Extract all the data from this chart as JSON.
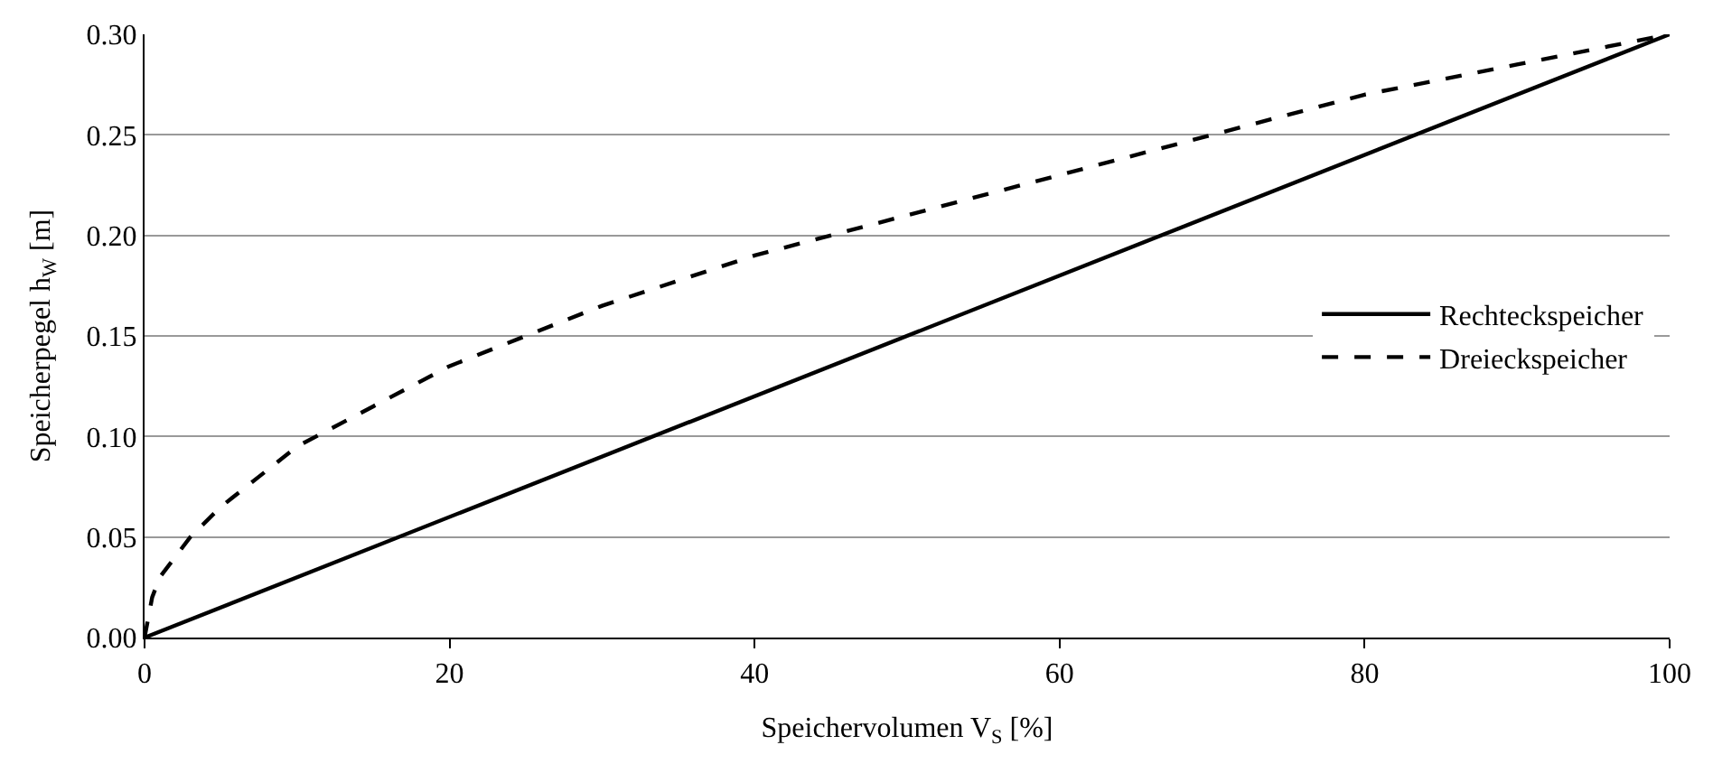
{
  "chart_data": {
    "type": "line",
    "xlabel": "Speichervolumen V$_{S}$ [%]",
    "ylabel": "Speicherpegel h$_{W}$ [m]",
    "xlim": [
      0,
      100
    ],
    "xticks": [
      0,
      20,
      40,
      60,
      80,
      100
    ],
    "ylim": [
      0,
      0.3
    ],
    "yticks": [
      {
        "value": 0,
        "label": "0.00"
      },
      {
        "value": 0.05,
        "label": "0.05"
      },
      {
        "value": 0.1,
        "label": "0.10"
      },
      {
        "value": 0.15,
        "label": "0.15"
      },
      {
        "value": 0.2,
        "label": "0.20"
      },
      {
        "value": 0.25,
        "label": "0.25"
      },
      {
        "value": 0.3,
        "label": "0.30"
      }
    ],
    "grid": "y",
    "legend": "right",
    "marker": "none",
    "series": [
      {
        "name": "Rechteckspeicher",
        "color": "#000000",
        "line_style": "solid",
        "x": [
          0,
          100
        ],
        "values": [
          0,
          0.3
        ]
      },
      {
        "name": "Dreieckspeicher",
        "color": "#000000",
        "line_style": "dashed",
        "x": [
          0,
          0.5,
          1,
          2,
          3,
          5,
          7.5,
          10,
          15,
          20,
          25,
          30,
          40,
          50,
          60,
          70,
          80,
          90,
          100
        ],
        "values": [
          0,
          0.02,
          0.03,
          0.04,
          0.05,
          0.065,
          0.08,
          0.095,
          0.115,
          0.135,
          0.15,
          0.165,
          0.19,
          0.21,
          0.23,
          0.25,
          0.27,
          0.285,
          0.3
        ]
      }
    ]
  }
}
